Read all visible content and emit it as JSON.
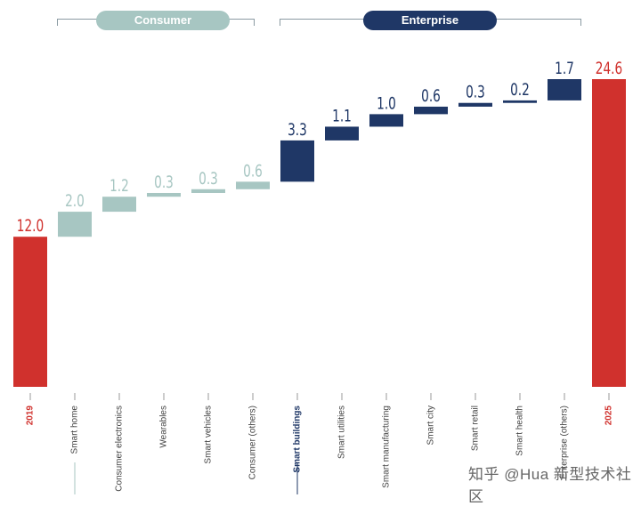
{
  "groups": {
    "consumer": "Consumer",
    "enterprise": "Enterprise"
  },
  "watermark": "知乎 @Hua 新型技术社区",
  "colors": {
    "total": "#d0312d",
    "consumer": "#a7c6c2",
    "enterprise": "#1f3766"
  },
  "chart_data": {
    "type": "bar",
    "subtype": "waterfall",
    "categories": [
      "2019",
      "Smart home",
      "Consumer electronics",
      "Wearables",
      "Smart vehicles",
      "Consumer (others)",
      "Smart buildings",
      "Smart utilities",
      "Smart manufacturing",
      "Smart city",
      "Smart retail",
      "Smart health",
      "Enterprise (others)",
      "2025"
    ],
    "values": [
      12.0,
      2.0,
      1.2,
      0.3,
      0.3,
      0.6,
      3.3,
      1.1,
      1.0,
      0.6,
      0.3,
      0.2,
      1.7,
      24.6
    ],
    "labels": [
      "12.0",
      "2.0",
      "1.2",
      "0.3",
      "0.3",
      "0.6",
      "3.3",
      "1.1",
      "1.0",
      "0.6",
      "0.3",
      "0.2",
      "1.7",
      "24.6"
    ],
    "kinds": [
      "total",
      "consumer",
      "consumer",
      "consumer",
      "consumer",
      "consumer",
      "enterprise",
      "enterprise",
      "enterprise",
      "enterprise",
      "enterprise",
      "enterprise",
      "enterprise",
      "total"
    ],
    "title": "",
    "xlabel": "",
    "ylabel": "",
    "ylim": [
      0,
      24.6
    ],
    "grid": false,
    "legend": "none"
  }
}
